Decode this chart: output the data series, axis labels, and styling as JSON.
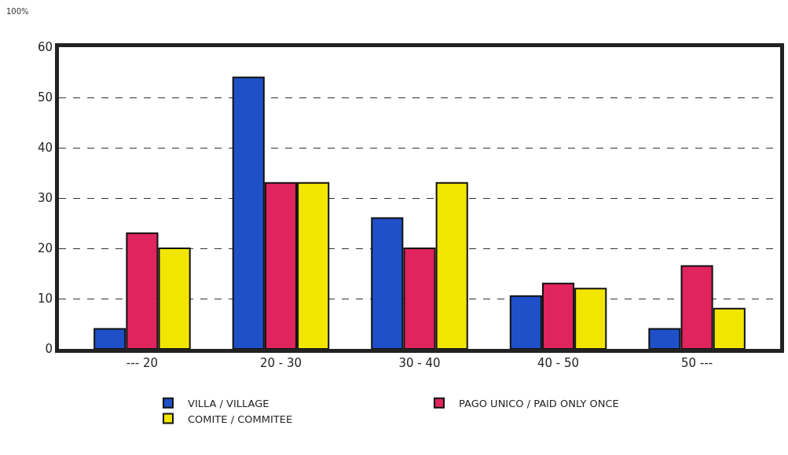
{
  "chart_data": {
    "type": "bar",
    "categories": [
      "--- 20",
      "20 - 30",
      "30 - 40",
      "40 - 50",
      "50 ---"
    ],
    "series": [
      {
        "name": "VILLA / VILLAGE",
        "color": "#1f50c8",
        "values": [
          4,
          54,
          26,
          10.5,
          4
        ]
      },
      {
        "name": "PAGO UNICO / PAID ONLY ONCE",
        "color": "#e0245e",
        "values": [
          23,
          33,
          20,
          13,
          16.5
        ]
      },
      {
        "name": "COMITE / COMMITEE",
        "color": "#f2e600",
        "values": [
          20,
          33,
          33,
          12,
          8
        ]
      }
    ],
    "ylim": [
      0,
      60
    ],
    "yticks": [
      0,
      10,
      20,
      30,
      40,
      50,
      60
    ],
    "grid": "y",
    "legend": "bottom",
    "annotations": [
      "100%"
    ]
  }
}
